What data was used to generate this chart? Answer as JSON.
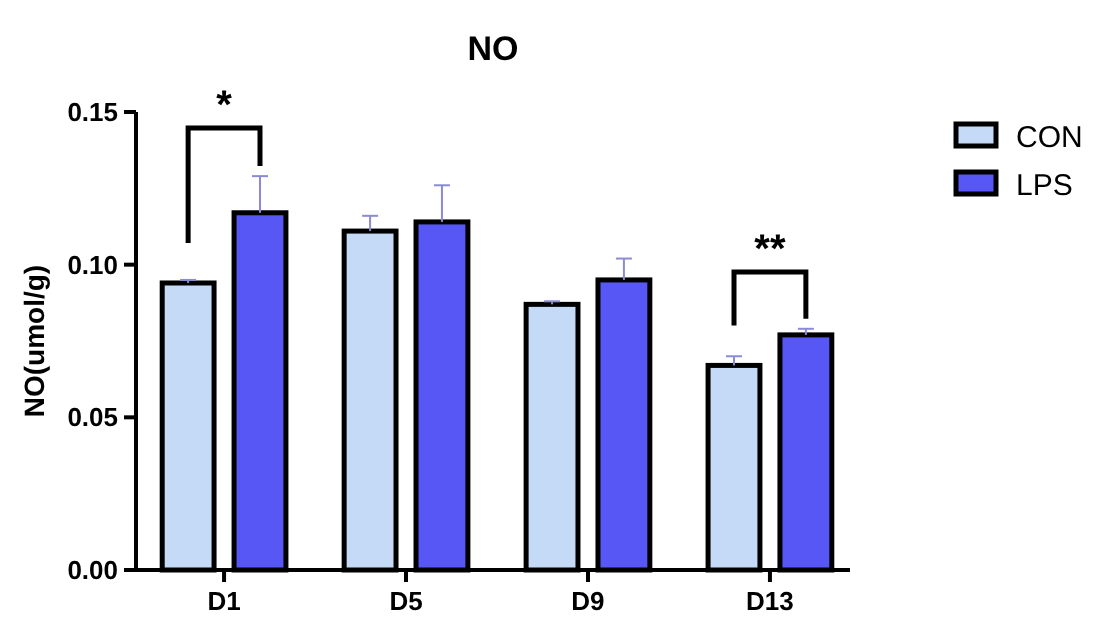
{
  "chart_data": {
    "type": "bar",
    "title": "NO",
    "ylabel": "NO(umol/g)",
    "categories": [
      "D1",
      "D5",
      "D9",
      "D13"
    ],
    "series": [
      {
        "name": "CON",
        "color": "#c5daf6",
        "values": [
          0.094,
          0.111,
          0.087,
          0.067
        ],
        "errors": [
          0.001,
          0.005,
          0.001,
          0.003
        ]
      },
      {
        "name": "LPS",
        "color": "#5757f6",
        "values": [
          0.117,
          0.114,
          0.095,
          0.077
        ],
        "errors": [
          0.012,
          0.012,
          0.007,
          0.002
        ]
      }
    ],
    "ylim": [
      0,
      0.15
    ],
    "yticks": [
      {
        "value": 0,
        "label": "0.00"
      },
      {
        "value": 0.05,
        "label": "0.05"
      },
      {
        "value": 0.1,
        "label": "0.10"
      },
      {
        "value": 0.15,
        "label": "0.15"
      }
    ],
    "annotations": [
      "*",
      "**"
    ],
    "legend": "right",
    "grid": false
  }
}
